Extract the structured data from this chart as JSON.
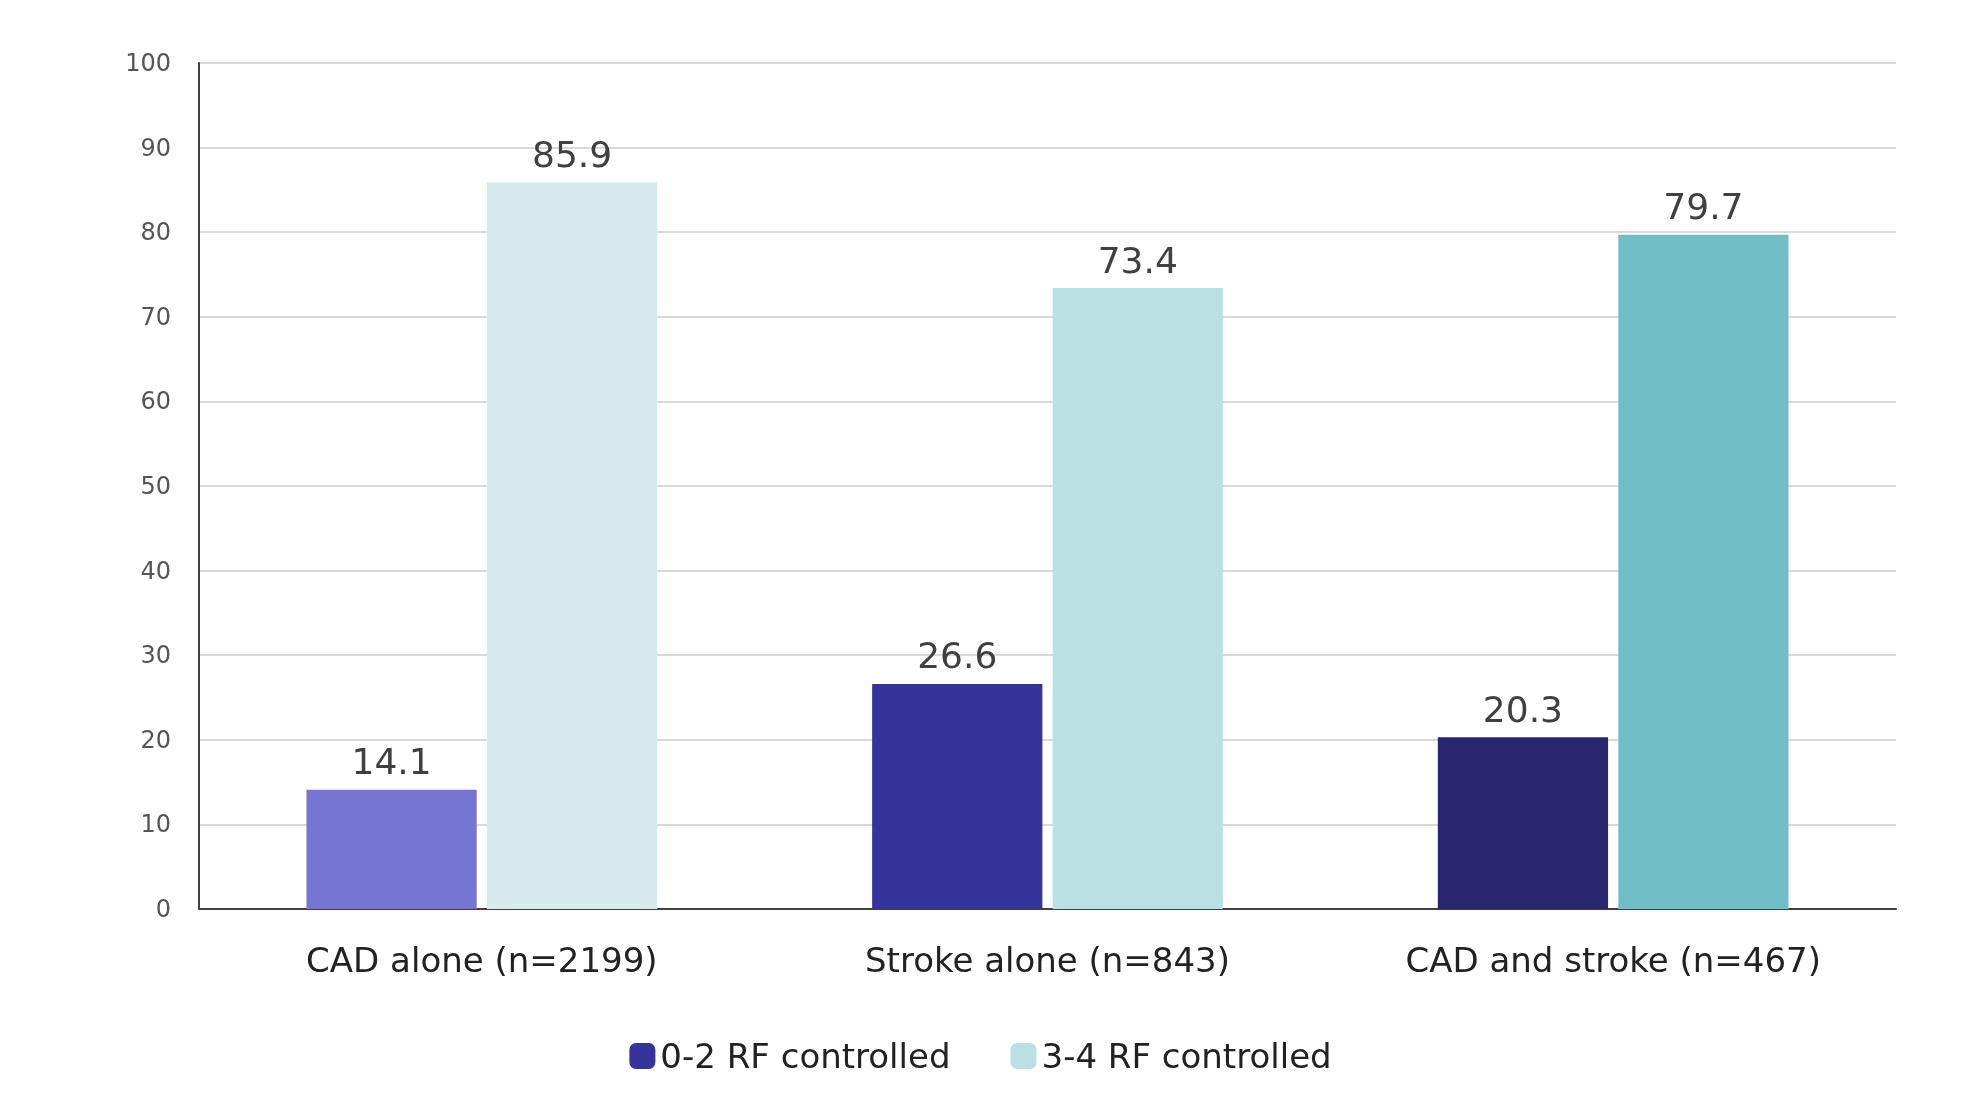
{
  "chart_data": {
    "type": "bar",
    "categories": [
      "CAD alone (n=2199)",
      "Stroke alone (n=843)",
      "CAD and stroke (n=467)"
    ],
    "series": [
      {
        "name": "0-2 RF controlled",
        "color": "#35349a",
        "colors": [
          "#7676d2",
          "#35349a",
          "#28266e"
        ],
        "values": [
          14.1,
          26.6,
          20.3
        ]
      },
      {
        "name": "3-4 RF controlled",
        "color": "#b9e0e3",
        "colors": [
          "#d5ebee",
          "#b9e0e3",
          "#71bfc6"
        ],
        "values": [
          85.9,
          73.4,
          79.7
        ]
      }
    ],
    "ylim": [
      0,
      100
    ],
    "yticks": [
      0,
      10,
      20,
      30,
      40,
      50,
      60,
      70,
      80,
      90,
      100
    ],
    "grid": "y",
    "legend": "bottom",
    "data_labels": true
  }
}
